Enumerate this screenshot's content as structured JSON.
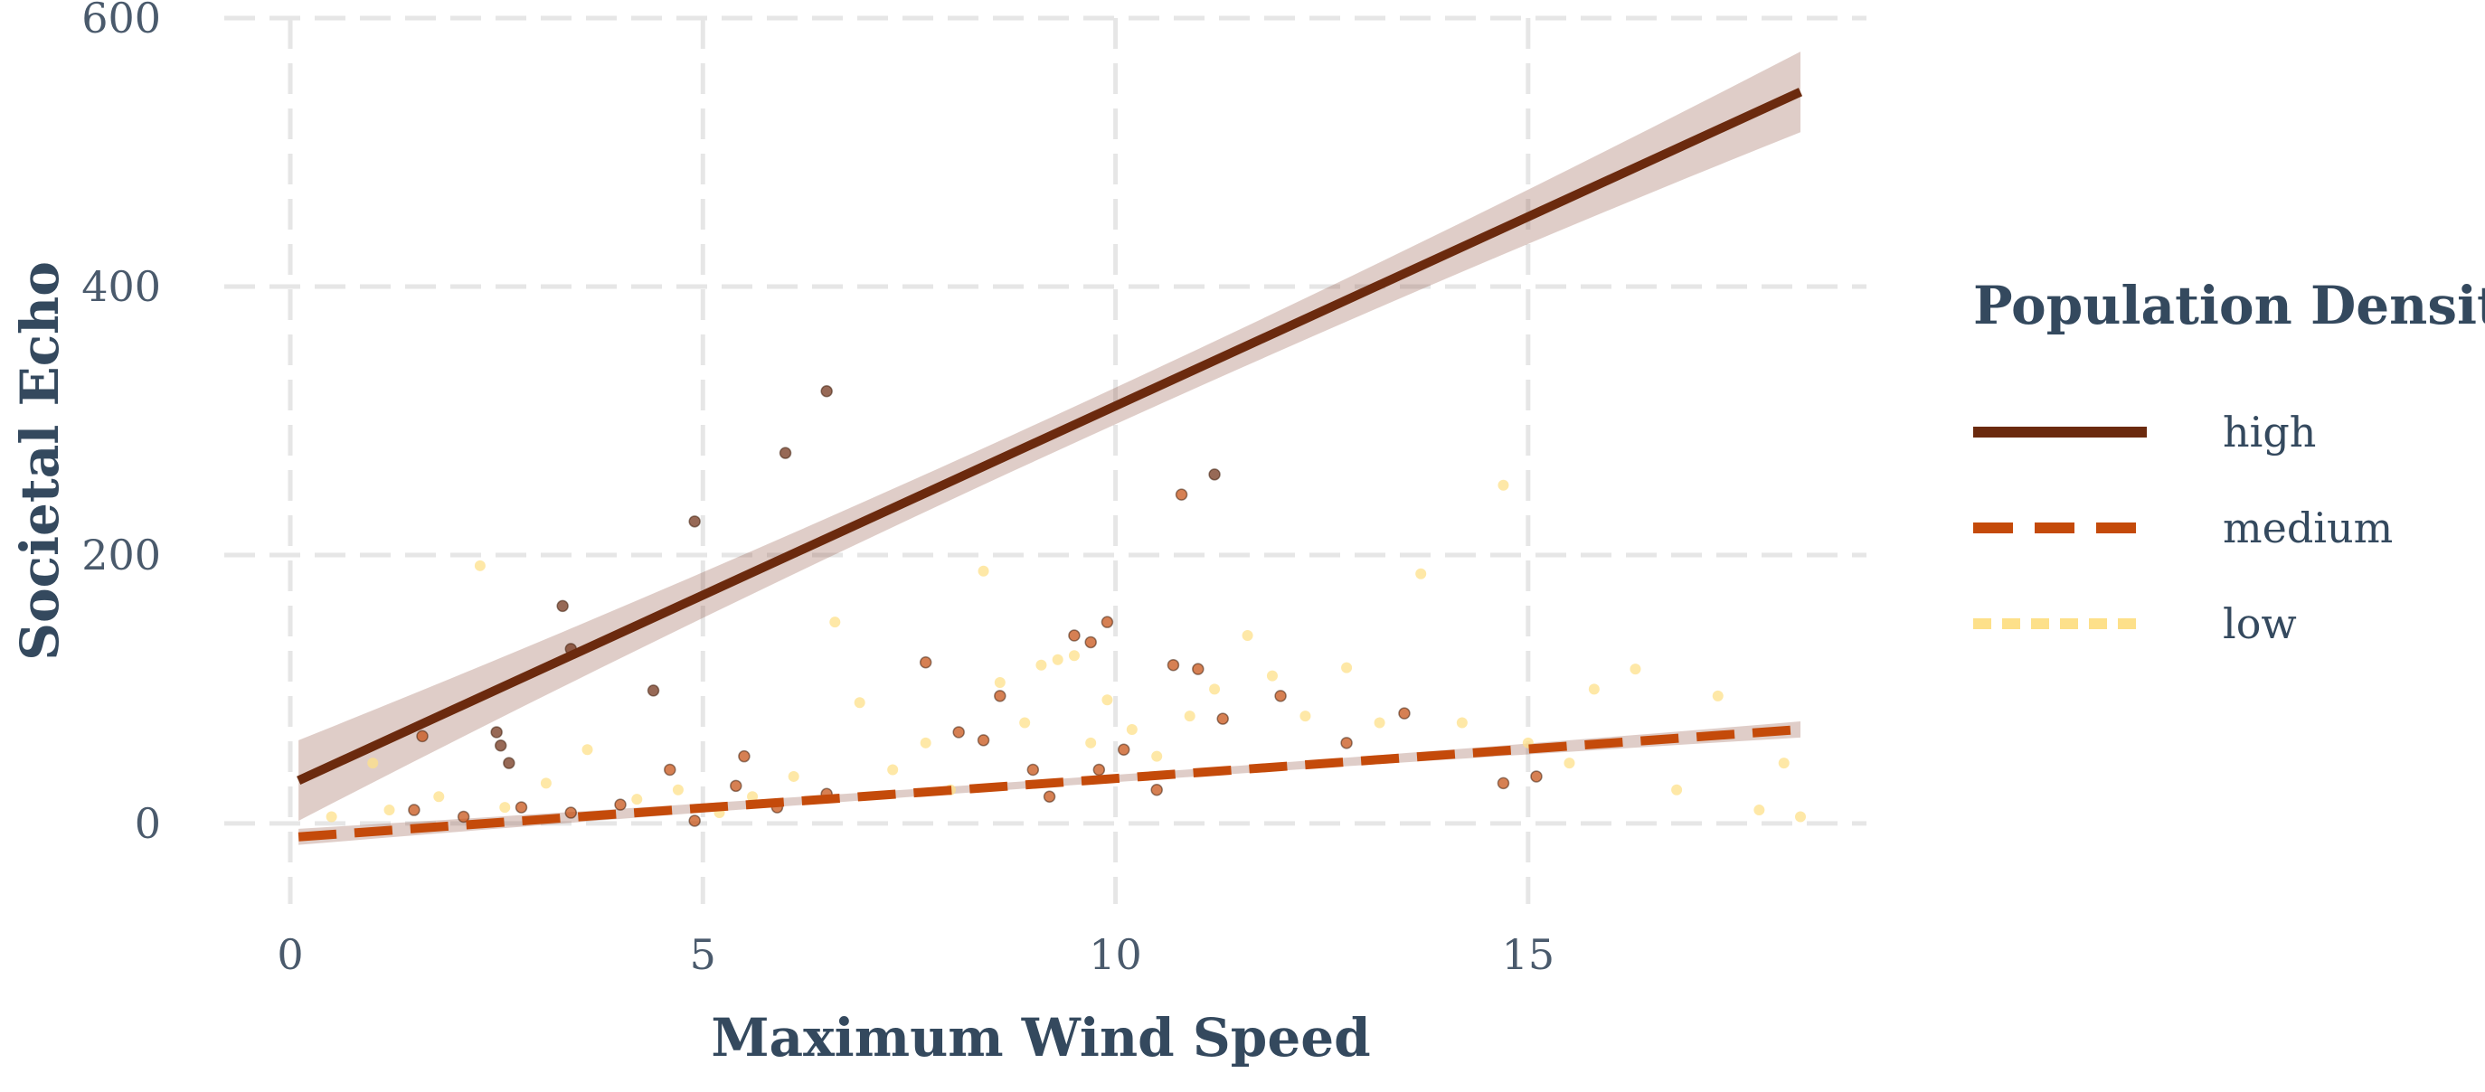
{
  "chart_data": {
    "type": "scatter",
    "title": "",
    "xlabel": "Maximum Wind Speed",
    "ylabel": "Societal Echo",
    "xlim": [
      -0.8,
      19.1
    ],
    "ylim": [
      -60,
      600
    ],
    "x_ticks": [
      0,
      5,
      10,
      15
    ],
    "y_ticks": [
      0,
      200,
      400,
      600
    ],
    "grid": true,
    "legend": {
      "title": "Population Density",
      "placement": "right"
    },
    "series": [
      {
        "name": "high",
        "color": "#6b2a0e",
        "line_style": "solid",
        "fit": {
          "x0": 0.1,
          "y0": 32,
          "x1": 18.3,
          "y1": 545,
          "ci": 30
        },
        "points": [
          [
            2.5,
            68
          ],
          [
            2.55,
            58
          ],
          [
            2.65,
            45
          ],
          [
            3.3,
            162
          ],
          [
            3.4,
            130
          ],
          [
            4.4,
            99
          ],
          [
            4.9,
            225
          ],
          [
            6.0,
            276
          ],
          [
            6.5,
            322
          ],
          [
            11.2,
            260
          ]
        ]
      },
      {
        "name": "medium",
        "color": "#c44a0a",
        "line_style": "dashed",
        "fit": {
          "x0": 0.1,
          "y0": -10,
          "x1": 18.3,
          "y1": 70,
          "ci": 6
        },
        "points": [
          [
            1.6,
            65
          ],
          [
            1.5,
            10
          ],
          [
            2.1,
            5
          ],
          [
            2.8,
            12
          ],
          [
            3.4,
            8
          ],
          [
            4.0,
            14
          ],
          [
            4.6,
            40
          ],
          [
            4.9,
            2
          ],
          [
            5.4,
            28
          ],
          [
            5.5,
            50
          ],
          [
            5.9,
            12
          ],
          [
            6.5,
            22
          ],
          [
            7.7,
            120
          ],
          [
            8.1,
            68
          ],
          [
            8.4,
            62
          ],
          [
            8.6,
            95
          ],
          [
            9.0,
            40
          ],
          [
            9.2,
            20
          ],
          [
            9.5,
            140
          ],
          [
            9.7,
            135
          ],
          [
            9.8,
            40
          ],
          [
            9.9,
            150
          ],
          [
            10.1,
            55
          ],
          [
            10.5,
            25
          ],
          [
            10.7,
            118
          ],
          [
            10.8,
            245
          ],
          [
            11.0,
            115
          ],
          [
            11.3,
            78
          ],
          [
            12.0,
            95
          ],
          [
            12.8,
            60
          ],
          [
            13.5,
            82
          ],
          [
            14.7,
            30
          ],
          [
            15.1,
            35
          ]
        ]
      },
      {
        "name": "low",
        "color": "#fde08a",
        "line_style": "dotted",
        "points": [
          [
            0.5,
            5
          ],
          [
            1.0,
            45
          ],
          [
            1.2,
            10
          ],
          [
            1.8,
            20
          ],
          [
            2.3,
            192
          ],
          [
            2.6,
            12
          ],
          [
            3.1,
            30
          ],
          [
            3.6,
            55
          ],
          [
            4.2,
            18
          ],
          [
            4.7,
            25
          ],
          [
            5.2,
            8
          ],
          [
            5.6,
            20
          ],
          [
            6.1,
            35
          ],
          [
            6.6,
            150
          ],
          [
            6.9,
            90
          ],
          [
            7.3,
            40
          ],
          [
            7.7,
            60
          ],
          [
            8.0,
            25
          ],
          [
            8.4,
            188
          ],
          [
            8.6,
            105
          ],
          [
            8.9,
            75
          ],
          [
            9.1,
            118
          ],
          [
            9.3,
            122
          ],
          [
            9.5,
            125
          ],
          [
            9.7,
            60
          ],
          [
            9.9,
            92
          ],
          [
            10.2,
            70
          ],
          [
            10.5,
            50
          ],
          [
            10.9,
            80
          ],
          [
            11.2,
            100
          ],
          [
            11.6,
            140
          ],
          [
            11.9,
            110
          ],
          [
            12.3,
            80
          ],
          [
            12.8,
            116
          ],
          [
            13.2,
            75
          ],
          [
            13.7,
            186
          ],
          [
            14.2,
            75
          ],
          [
            14.7,
            252
          ],
          [
            15.0,
            60
          ],
          [
            15.5,
            45
          ],
          [
            15.8,
            100
          ],
          [
            16.3,
            115
          ],
          [
            16.8,
            25
          ],
          [
            17.3,
            95
          ],
          [
            17.8,
            10
          ],
          [
            18.1,
            45
          ],
          [
            18.3,
            5
          ]
        ]
      }
    ]
  }
}
